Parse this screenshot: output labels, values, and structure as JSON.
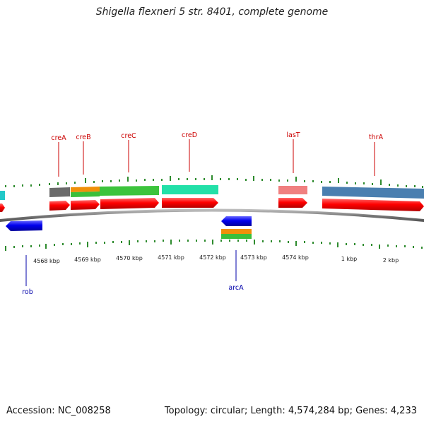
{
  "title": "Shigella flexneri 5 str. 8401, complete genome",
  "footer": {
    "accession": "Accession: NC_008258",
    "summary": "Topology: circular; Length: 4,574,284 bp; Genes: 4,233"
  },
  "kbp_labels": [
    "4568 kbp",
    "4569 kbp",
    "4570 kbp",
    "4571 kbp",
    "4572 kbp",
    "4573 kbp",
    "4574 kbp",
    "1 kbp",
    "2 kbp"
  ],
  "gene_labels": {
    "creA": "creA",
    "creB": "creB",
    "creC": "creC",
    "creD": "creD",
    "lasT": "lasT",
    "thrA": "thrA",
    "rob": "rob",
    "arcA": "arcA"
  },
  "colors": {
    "forward_label": "#cc0000",
    "reverse_label": "#0000aa",
    "tick": "#2e8b2e",
    "backbone": "#888888"
  }
}
